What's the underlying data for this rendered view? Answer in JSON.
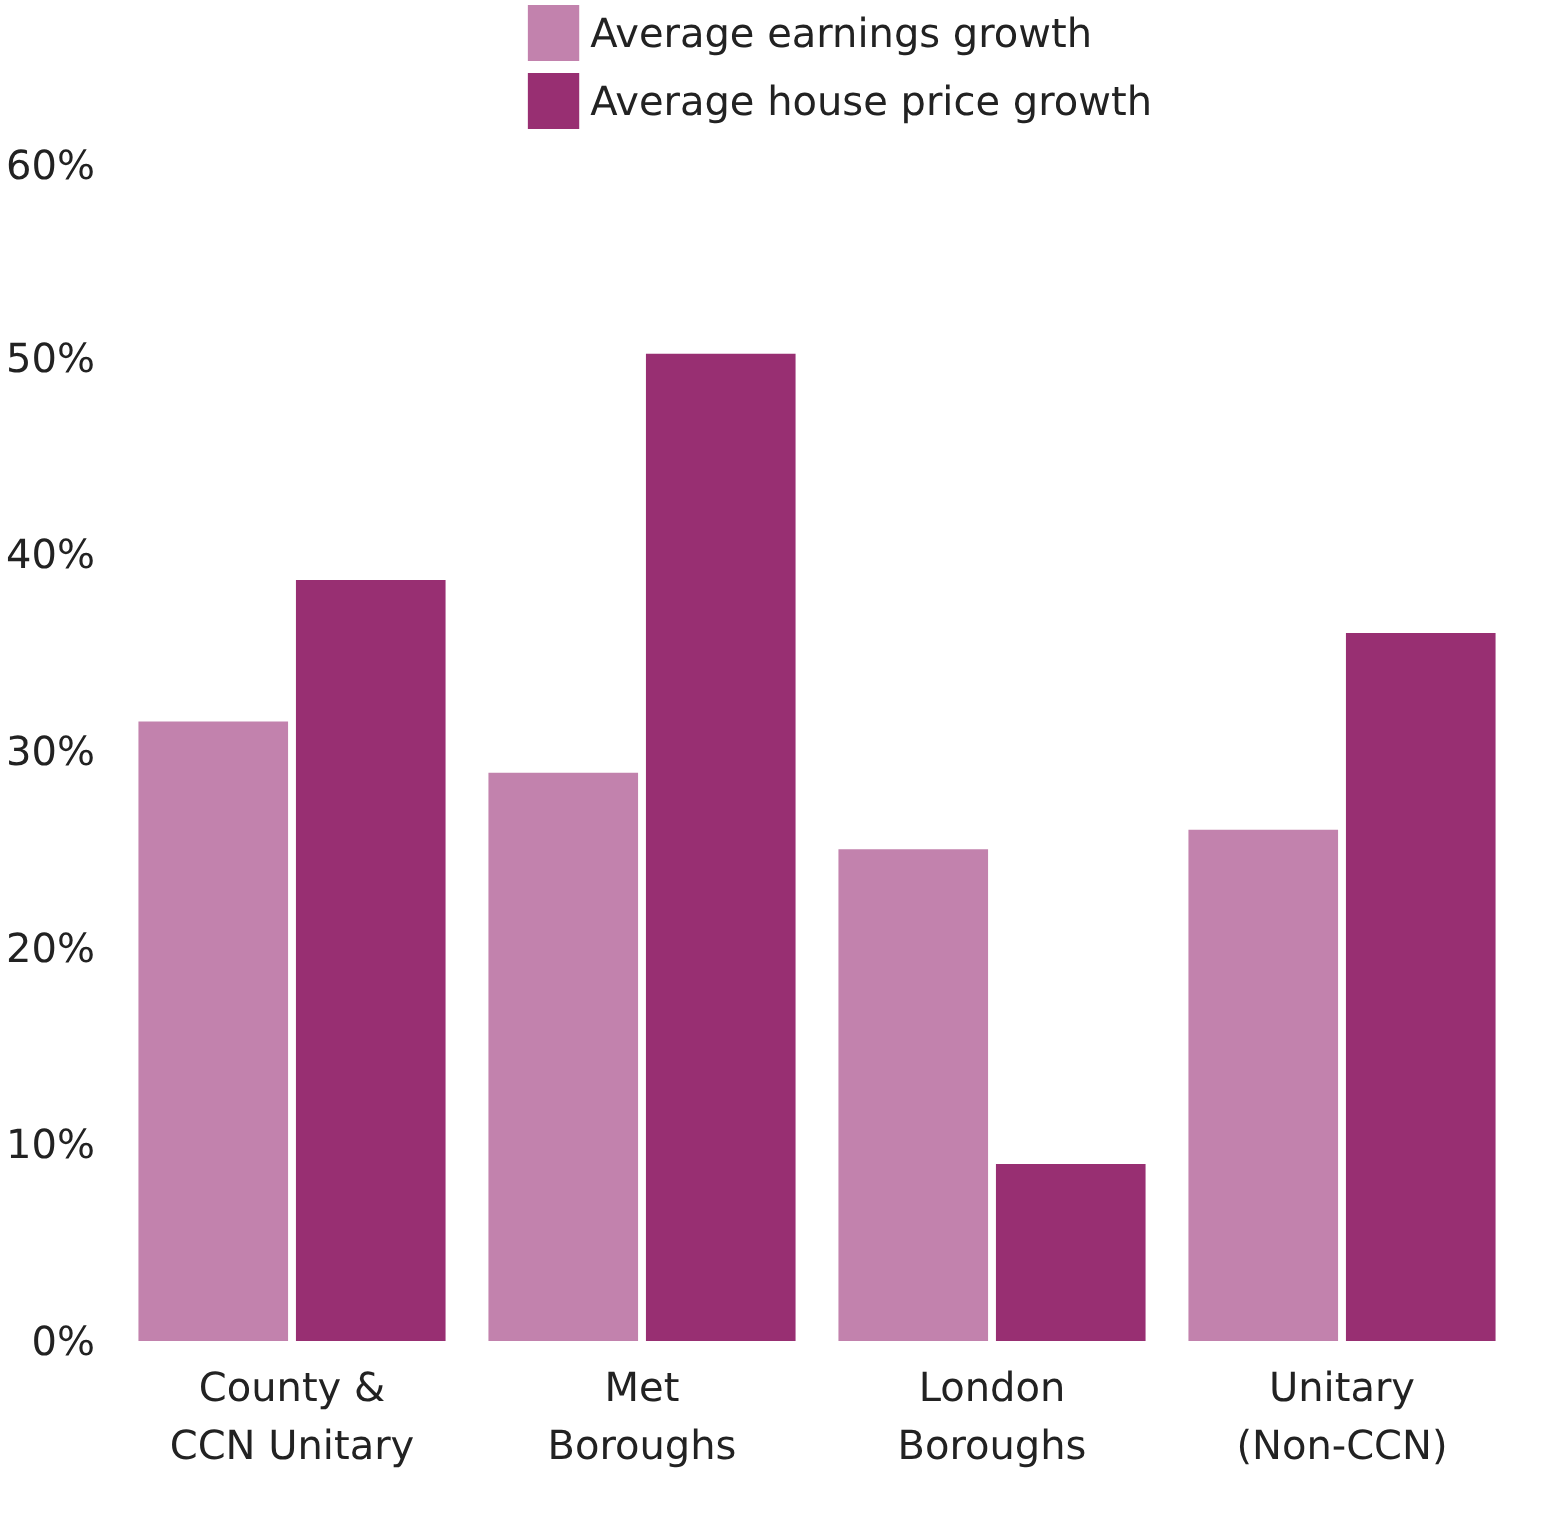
{
  "chart_data": {
    "type": "bar",
    "categories": [
      "County &\nCCN Unitary",
      "Met\nBoroughs",
      "London\nBoroughs",
      "Unitary\n(Non-CCN)"
    ],
    "series": [
      {
        "name": "Average earnings growth",
        "color": "#c282ad",
        "values": [
          31.5,
          28.9,
          25.0,
          26.0
        ]
      },
      {
        "name": "Average house price growth",
        "color": "#982f72",
        "values": [
          38.7,
          50.2,
          9.0,
          36.0
        ]
      }
    ],
    "ylim": [
      0,
      60
    ],
    "yticks": [
      {
        "value": 0,
        "label": "0%"
      },
      {
        "value": 10,
        "label": "10%"
      },
      {
        "value": 20,
        "label": "20%"
      },
      {
        "value": 30,
        "label": "30%"
      },
      {
        "value": 40,
        "label": "40%"
      },
      {
        "value": 50,
        "label": "50%"
      },
      {
        "value": 60,
        "label": "60%"
      }
    ],
    "grid": false,
    "legend": "top"
  }
}
